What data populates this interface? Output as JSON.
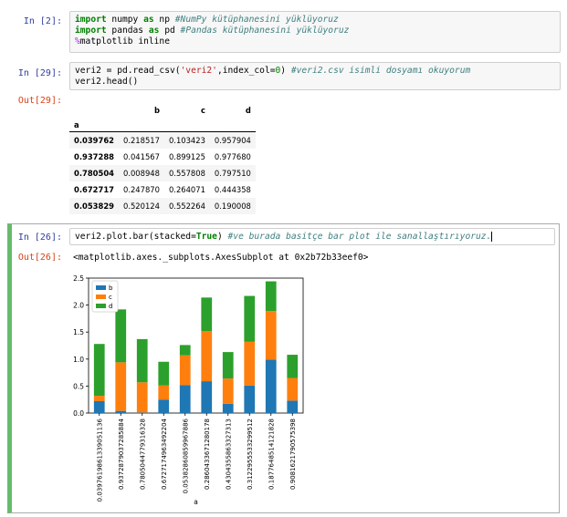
{
  "cells": {
    "c1": {
      "prompt": "In [2]:",
      "line1_kw1": "import",
      "line1_rest": " numpy ",
      "line1_kw2": "as",
      "line1_alias": " np ",
      "line1_comment": "#NumPy kütüphanesini yüklüyoruz",
      "line2_kw1": "import",
      "line2_rest": " pandas ",
      "line2_kw2": "as",
      "line2_alias": " pd ",
      "line2_comment": "#Pandas kütüphanesini yüklüyoruz",
      "line3_magic": "%",
      "line3_rest": "matplotlib inline"
    },
    "c2": {
      "prompt": "In [29]:",
      "line1_a": "veri2 = pd.read_csv(",
      "line1_str": "'veri2'",
      "line1_b": ",index_col=",
      "line1_num": "0",
      "line1_c": ") ",
      "line1_comment": "#veri2.csv isimli dosyamı okuyorum",
      "line2": "veri2.head()",
      "out_prompt": "Out[29]:"
    },
    "c3": {
      "prompt": "In [26]:",
      "code_a": "veri2.plot.bar(stacked=",
      "code_kw": "True",
      "code_b": ") ",
      "code_comment": "#ve burada basitçe bar plot ile sanallaştırıyoruz.",
      "out_prompt": "Out[26]:",
      "repr": "<matplotlib.axes._subplots.AxesSubplot at 0x2b72b33eef0>"
    }
  },
  "dataframe": {
    "columns": [
      "b",
      "c",
      "d"
    ],
    "index_name": "a",
    "rows": [
      {
        "a": "0.039762",
        "b": "0.218517",
        "c": "0.103423",
        "d": "0.957904"
      },
      {
        "a": "0.937288",
        "b": "0.041567",
        "c": "0.899125",
        "d": "0.977680"
      },
      {
        "a": "0.780504",
        "b": "0.008948",
        "c": "0.557808",
        "d": "0.797510"
      },
      {
        "a": "0.672717",
        "b": "0.247870",
        "c": "0.264071",
        "d": "0.444358"
      },
      {
        "a": "0.053829",
        "b": "0.520124",
        "c": "0.552264",
        "d": "0.190008"
      }
    ]
  },
  "chart_data": {
    "type": "bar",
    "stacked": true,
    "xlabel": "a",
    "ylabel": "",
    "ylim": [
      0,
      2.5
    ],
    "yticks": [
      "0.0",
      "0.5",
      "1.0",
      "1.5",
      "2.0",
      "2.5"
    ],
    "legend_position": "top-left",
    "categories": [
      "0.0397619861339051136",
      "0.9372879037285884",
      "0.7805044779316328",
      "0.6727174963492204",
      "0.05382860859967886",
      "0.2860433671280178",
      "0.4304355863327313",
      "0.3122955533299512",
      "0.1877648514121828",
      "0.9081621790575398"
    ],
    "series": [
      {
        "name": "b",
        "color": "#1f77b4",
        "values": [
          0.22,
          0.04,
          0.01,
          0.25,
          0.52,
          0.59,
          0.17,
          0.51,
          0.99,
          0.23
        ]
      },
      {
        "name": "c",
        "color": "#ff7f0e",
        "values": [
          0.1,
          0.9,
          0.56,
          0.26,
          0.55,
          0.93,
          0.47,
          0.81,
          0.9,
          0.42
        ]
      },
      {
        "name": "d",
        "color": "#2ca02c",
        "values": [
          0.96,
          0.98,
          0.8,
          0.44,
          0.19,
          0.62,
          0.49,
          0.85,
          0.55,
          0.43
        ]
      }
    ]
  }
}
